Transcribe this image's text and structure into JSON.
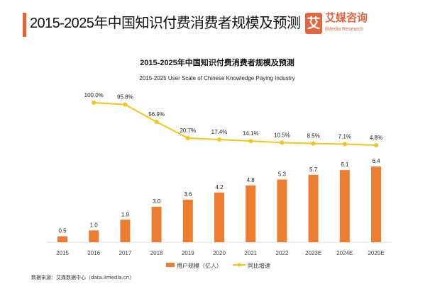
{
  "header": {
    "title": "2015-2025年中国知识付费消费者规模及预测",
    "logo_mark": "艾",
    "logo_cn": "艾媒咨询",
    "logo_en": "iiMedia Research"
  },
  "chart_data": {
    "type": "bar+line",
    "title": "2015-2025年中国知识付费消费者规模及预测",
    "subtitle": "2015-2025 User Scale of Chinese Knowledge Paying Industry",
    "categories": [
      "2015",
      "2016",
      "2017",
      "2018",
      "2019",
      "2020",
      "2021",
      "2022",
      "2023E",
      "2024E",
      "2025E"
    ],
    "series": [
      {
        "name": "用户规模（亿人）",
        "type": "bar",
        "color": "#ed7d31",
        "values": [
          0.5,
          1.0,
          1.9,
          3.0,
          3.6,
          4.2,
          4.8,
          5.3,
          5.7,
          6.1,
          6.4
        ],
        "labels": [
          "0.5",
          "1.0",
          "1.9",
          "3.0",
          "3.6",
          "4.2",
          "4.8",
          "5.3",
          "5.7",
          "6.1",
          "6.4"
        ]
      },
      {
        "name": "同比增速",
        "type": "line",
        "color": "#f5c518",
        "values": [
          null,
          100.0,
          95.8,
          56.9,
          20.7,
          17.4,
          14.1,
          10.5,
          8.5,
          7.1,
          4.8
        ],
        "labels": [
          "",
          "100.0%",
          "95.8%",
          "56.9%",
          "20.7%",
          "17.4%",
          "14.1%",
          "10.5%",
          "8.5%",
          "7.1%",
          "4.8%"
        ]
      }
    ],
    "legend": "bottom"
  },
  "footer": {
    "source": "数据来源：艾媒数据中心（data.iimedia.cn）"
  }
}
